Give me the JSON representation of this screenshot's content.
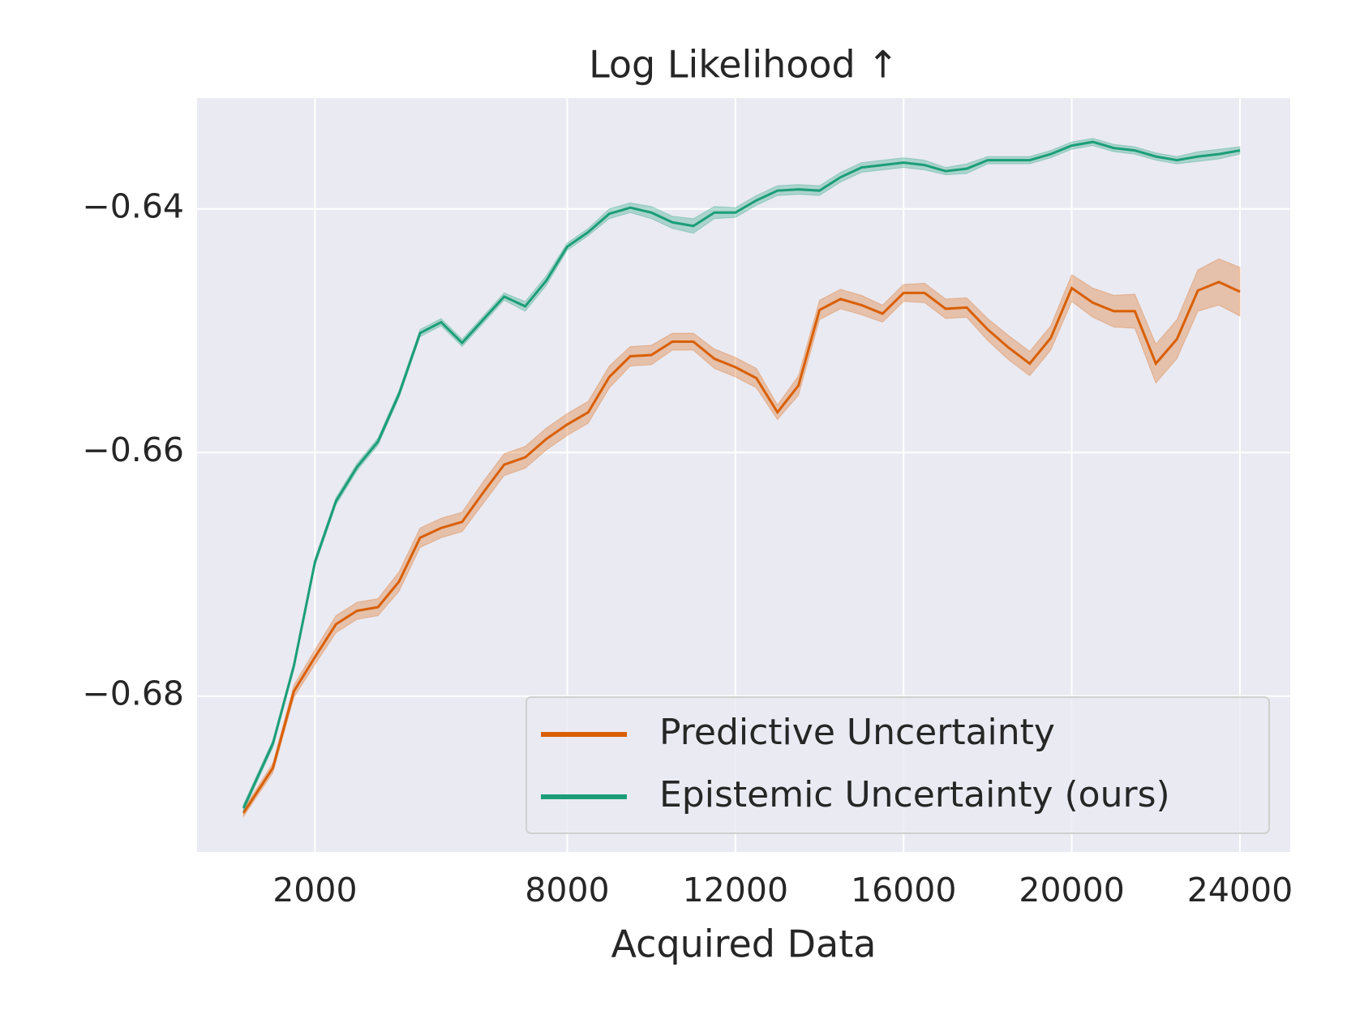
{
  "chart_data": {
    "type": "line",
    "title": "Log Likelihood ↑",
    "xlabel": "Acquired Data",
    "x": [
      300,
      1000,
      1500,
      2000,
      2500,
      3000,
      3500,
      4000,
      4500,
      5000,
      5500,
      6000,
      6500,
      7000,
      7500,
      8000,
      8500,
      9000,
      9500,
      10000,
      10500,
      11000,
      11500,
      12000,
      12500,
      13000,
      13500,
      14000,
      14500,
      15000,
      15500,
      16000,
      16500,
      17000,
      17500,
      18000,
      18500,
      19000,
      19500,
      20000,
      20500,
      21000,
      21500,
      22000,
      22500,
      23000,
      23500,
      24000
    ],
    "series": [
      {
        "name": "Predictive Uncertainty",
        "color": "#d95f02",
        "values": [
          -0.6896,
          -0.6859,
          -0.6796,
          -0.6768,
          -0.6741,
          -0.673,
          -0.6727,
          -0.6706,
          -0.667,
          -0.6662,
          -0.6657,
          -0.6633,
          -0.661,
          -0.6604,
          -0.6589,
          -0.6577,
          -0.6567,
          -0.6538,
          -0.6521,
          -0.652,
          -0.6509,
          -0.6509,
          -0.6523,
          -0.653,
          -0.6539,
          -0.6567,
          -0.6545,
          -0.6483,
          -0.6474,
          -0.6479,
          -0.6486,
          -0.6469,
          -0.6469,
          -0.6482,
          -0.6481,
          -0.6499,
          -0.6514,
          -0.6527,
          -0.6506,
          -0.6465,
          -0.6477,
          -0.6484,
          -0.6484,
          -0.6527,
          -0.6507,
          -0.6467,
          -0.646,
          -0.6468
        ],
        "errors": [
          0.0003,
          0.0004,
          0.0005,
          0.0006,
          0.0007,
          0.0007,
          0.0007,
          0.0008,
          0.0008,
          0.0008,
          0.0008,
          0.0009,
          0.0009,
          0.0009,
          0.0009,
          0.0009,
          0.0009,
          0.0009,
          0.0008,
          0.0008,
          0.0007,
          0.0007,
          0.0008,
          0.0008,
          0.0008,
          0.0006,
          0.0008,
          0.0008,
          0.0008,
          0.0008,
          0.0007,
          0.0007,
          0.0008,
          0.0008,
          0.0008,
          0.0009,
          0.001,
          0.001,
          0.001,
          0.0011,
          0.0012,
          0.0013,
          0.0014,
          0.0016,
          0.0016,
          0.0017,
          0.0019,
          0.002
        ]
      },
      {
        "name": "Epistemic Uncertainty (ours)",
        "color": "#1b9e77",
        "values": [
          -0.6892,
          -0.6839,
          -0.6775,
          -0.669,
          -0.664,
          -0.6612,
          -0.6591,
          -0.6552,
          -0.6502,
          -0.6493,
          -0.651,
          -0.6491,
          -0.6472,
          -0.648,
          -0.6459,
          -0.6431,
          -0.6419,
          -0.6404,
          -0.6399,
          -0.6403,
          -0.6411,
          -0.6414,
          -0.6403,
          -0.6403,
          -0.6393,
          -0.6385,
          -0.6384,
          -0.6385,
          -0.6374,
          -0.6366,
          -0.6364,
          -0.6362,
          -0.6364,
          -0.6369,
          -0.6367,
          -0.636,
          -0.636,
          -0.636,
          -0.6355,
          -0.6348,
          -0.6345,
          -0.635,
          -0.6352,
          -0.6357,
          -0.636,
          -0.6357,
          -0.6355,
          -0.6352
        ],
        "errors": [
          0.0003,
          0.0003,
          0.0003,
          0.0003,
          0.0003,
          0.0003,
          0.0003,
          0.0003,
          0.0003,
          0.0003,
          0.0003,
          0.0003,
          0.0003,
          0.0004,
          0.0004,
          0.0003,
          0.0003,
          0.0004,
          0.0004,
          0.0005,
          0.0005,
          0.0006,
          0.0005,
          0.0004,
          0.0004,
          0.0004,
          0.0004,
          0.0004,
          0.0004,
          0.0004,
          0.0004,
          0.0004,
          0.0004,
          0.0003,
          0.0004,
          0.0003,
          0.0003,
          0.0003,
          0.0003,
          0.0003,
          0.0003,
          0.0003,
          0.0003,
          0.0003,
          0.0003,
          0.0004,
          0.0004,
          0.0003
        ]
      }
    ],
    "xlim": [
      -804,
      25196
    ],
    "ylim": [
      -0.6928,
      -0.6309
    ],
    "xticks": [
      2000,
      8000,
      12000,
      16000,
      20000,
      24000
    ],
    "yticks": [
      {
        "value": -0.64,
        "label": "−0.64"
      },
      {
        "value": -0.66,
        "label": "−0.66"
      },
      {
        "value": -0.68,
        "label": "−0.68"
      }
    ],
    "grid": true,
    "legend": "lower right"
  }
}
